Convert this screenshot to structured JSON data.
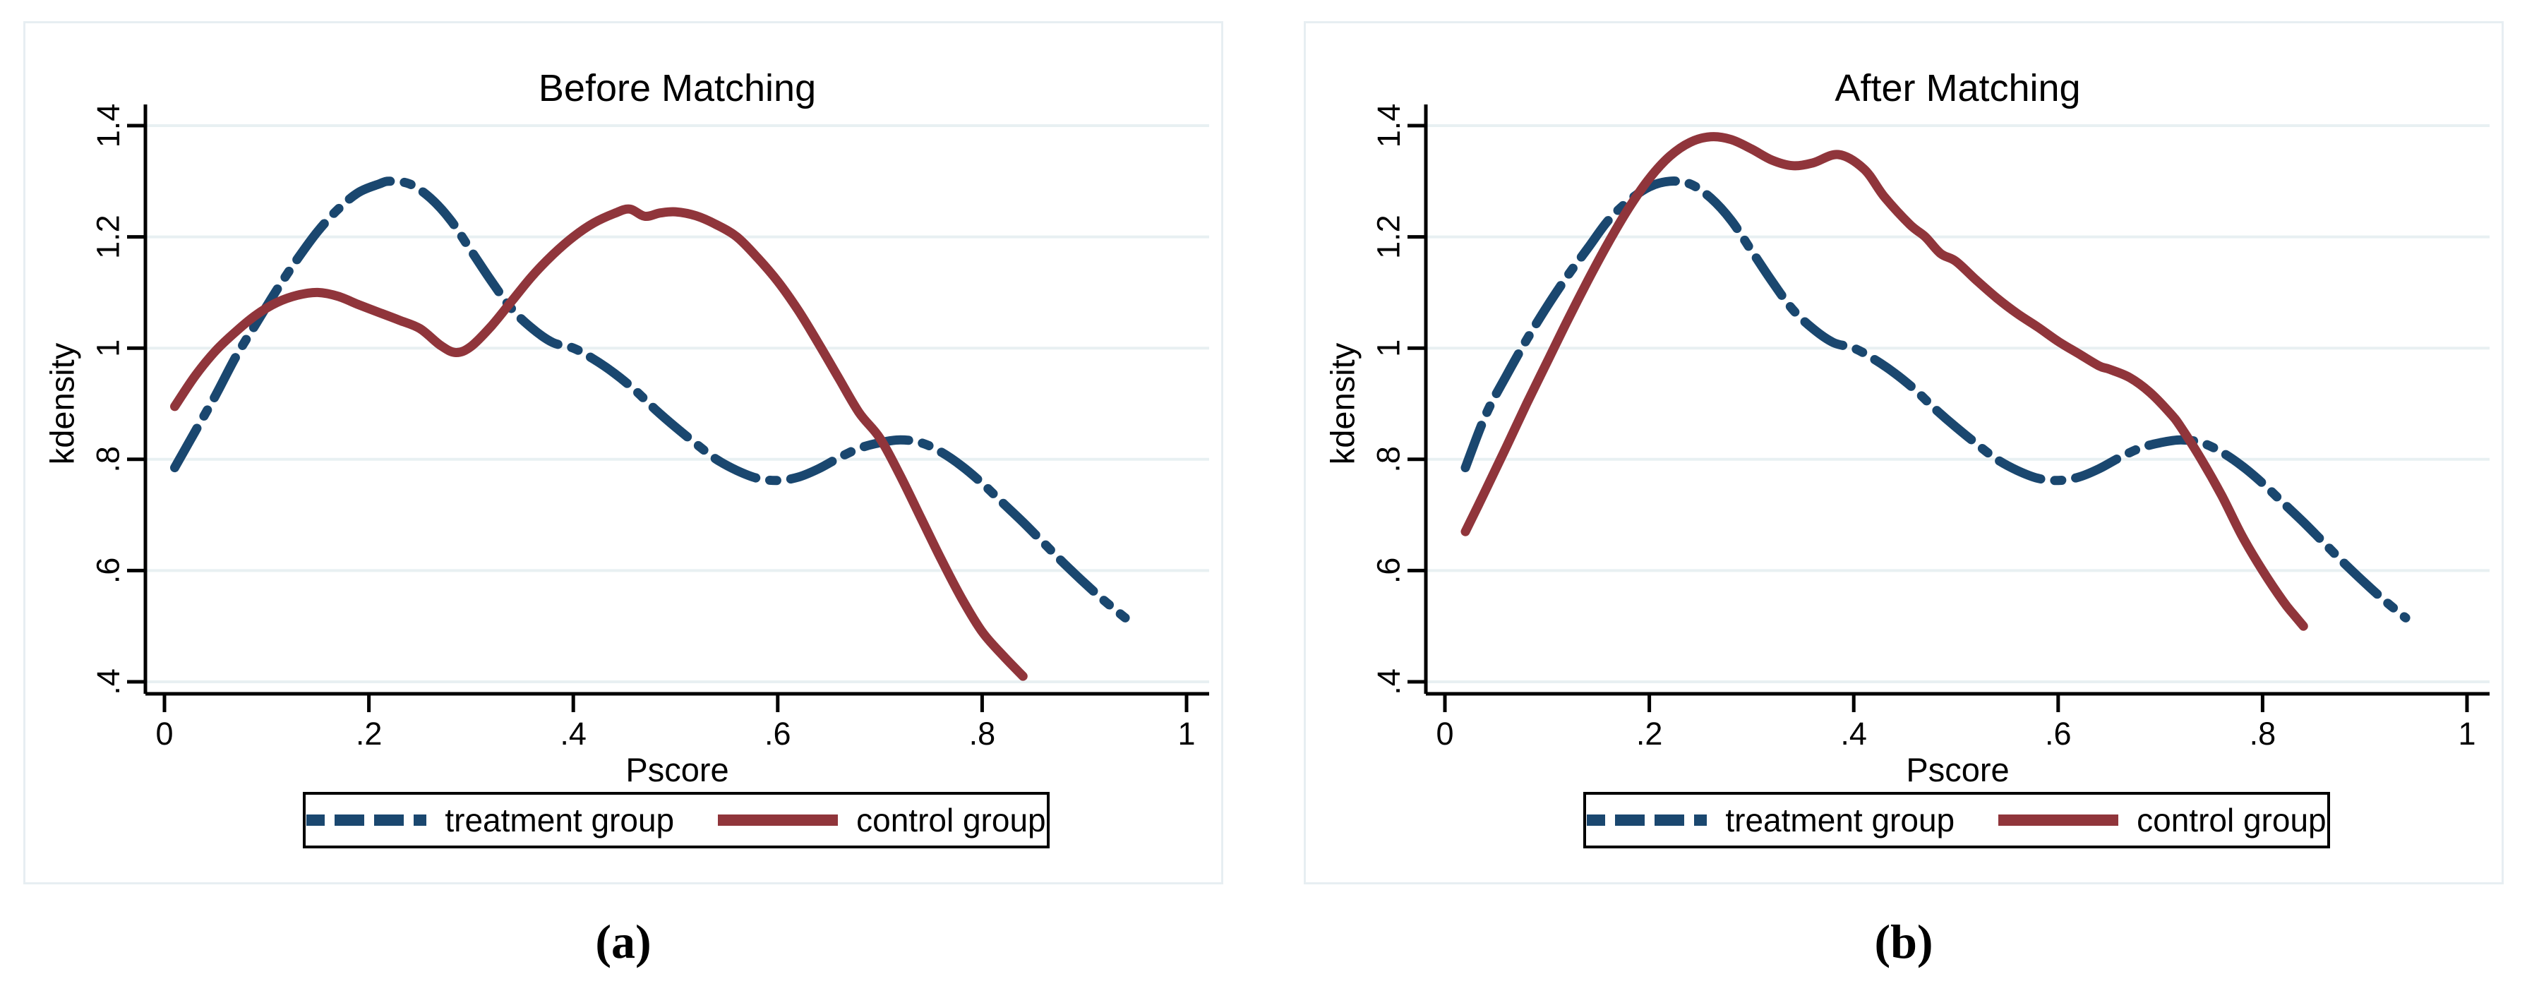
{
  "figure": {
    "caption_a": "(a)",
    "caption_b": "(b)"
  },
  "colors": {
    "treatment": "#1a476f",
    "control": "#90353b",
    "gridline": "#e8f0f2",
    "panel_frame": "#e7eef2",
    "axis": "#000000",
    "legend_border": "#000000",
    "background": "#ffffff"
  },
  "chart_data": [
    {
      "type": "line",
      "title": "Before Matching",
      "xlabel": "Pscore",
      "ylabel": "kdensity",
      "xlim": [
        0,
        1
      ],
      "ylim": [
        0.4,
        1.4
      ],
      "grid": "horizontal light gridlines at each y tick",
      "legend_position": "bottom outside, boxed, horizontal",
      "xticks": {
        "values": [
          0,
          0.2,
          0.4,
          0.6,
          0.8,
          1
        ],
        "labels": [
          "0",
          ".2",
          ".4",
          ".6",
          ".8",
          "1"
        ]
      },
      "yticks": {
        "values": [
          0.4,
          0.6,
          0.8,
          1,
          1.2,
          1.4
        ],
        "labels": [
          ".4",
          ".6",
          ".8",
          "1",
          "1.2",
          "1.4"
        ]
      },
      "series": [
        {
          "name": "treatment group",
          "color": "#1a476f",
          "line_style": "dash-dot",
          "points": [
            [
              0.01,
              0.785
            ],
            [
              0.03,
              0.85
            ],
            [
              0.05,
              0.915
            ],
            [
              0.07,
              0.985
            ],
            [
              0.09,
              1.045
            ],
            [
              0.11,
              1.105
            ],
            [
              0.13,
              1.16
            ],
            [
              0.15,
              1.21
            ],
            [
              0.17,
              1.25
            ],
            [
              0.19,
              1.28
            ],
            [
              0.21,
              1.295
            ],
            [
              0.22,
              1.3
            ],
            [
              0.24,
              1.295
            ],
            [
              0.26,
              1.27
            ],
            [
              0.28,
              1.23
            ],
            [
              0.3,
              1.175
            ],
            [
              0.32,
              1.12
            ],
            [
              0.34,
              1.07
            ],
            [
              0.36,
              1.035
            ],
            [
              0.38,
              1.01
            ],
            [
              0.4,
              1.0
            ],
            [
              0.42,
              0.98
            ],
            [
              0.44,
              0.955
            ],
            [
              0.46,
              0.925
            ],
            [
              0.48,
              0.89
            ],
            [
              0.5,
              0.858
            ],
            [
              0.52,
              0.828
            ],
            [
              0.54,
              0.8
            ],
            [
              0.56,
              0.78
            ],
            [
              0.58,
              0.766
            ],
            [
              0.6,
              0.762
            ],
            [
              0.62,
              0.768
            ],
            [
              0.64,
              0.783
            ],
            [
              0.66,
              0.803
            ],
            [
              0.68,
              0.82
            ],
            [
              0.7,
              0.83
            ],
            [
              0.72,
              0.835
            ],
            [
              0.74,
              0.83
            ],
            [
              0.76,
              0.813
            ],
            [
              0.78,
              0.788
            ],
            [
              0.8,
              0.757
            ],
            [
              0.82,
              0.722
            ],
            [
              0.84,
              0.687
            ],
            [
              0.86,
              0.65
            ],
            [
              0.88,
              0.613
            ],
            [
              0.9,
              0.578
            ],
            [
              0.92,
              0.545
            ],
            [
              0.94,
              0.515
            ]
          ]
        },
        {
          "name": "control group",
          "color": "#90353b",
          "line_style": "solid",
          "points": [
            [
              0.01,
              0.895
            ],
            [
              0.03,
              0.95
            ],
            [
              0.05,
              0.995
            ],
            [
              0.07,
              1.03
            ],
            [
              0.09,
              1.06
            ],
            [
              0.11,
              1.082
            ],
            [
              0.13,
              1.095
            ],
            [
              0.15,
              1.1
            ],
            [
              0.17,
              1.093
            ],
            [
              0.19,
              1.078
            ],
            [
              0.21,
              1.064
            ],
            [
              0.23,
              1.05
            ],
            [
              0.25,
              1.035
            ],
            [
              0.27,
              1.005
            ],
            [
              0.285,
              0.992
            ],
            [
              0.3,
              1.003
            ],
            [
              0.32,
              1.04
            ],
            [
              0.34,
              1.085
            ],
            [
              0.36,
              1.13
            ],
            [
              0.38,
              1.168
            ],
            [
              0.4,
              1.2
            ],
            [
              0.42,
              1.225
            ],
            [
              0.44,
              1.242
            ],
            [
              0.455,
              1.25
            ],
            [
              0.47,
              1.237
            ],
            [
              0.485,
              1.243
            ],
            [
              0.5,
              1.245
            ],
            [
              0.52,
              1.238
            ],
            [
              0.54,
              1.222
            ],
            [
              0.56,
              1.2
            ],
            [
              0.58,
              1.163
            ],
            [
              0.6,
              1.12
            ],
            [
              0.62,
              1.068
            ],
            [
              0.64,
              1.008
            ],
            [
              0.66,
              0.945
            ],
            [
              0.68,
              0.883
            ],
            [
              0.7,
              0.838
            ],
            [
              0.72,
              0.77
            ],
            [
              0.74,
              0.695
            ],
            [
              0.76,
              0.62
            ],
            [
              0.78,
              0.55
            ],
            [
              0.8,
              0.49
            ],
            [
              0.82,
              0.448
            ],
            [
              0.84,
              0.41
            ]
          ]
        }
      ],
      "legend": {
        "entries": [
          {
            "label": "treatment group"
          },
          {
            "label": "control group"
          }
        ]
      }
    },
    {
      "type": "line",
      "title": "After Matching",
      "xlabel": "Pscore",
      "ylabel": "kdensity",
      "xlim": [
        0,
        1
      ],
      "ylim": [
        0.4,
        1.4
      ],
      "grid": "horizontal light gridlines at each y tick",
      "legend_position": "bottom outside, boxed, horizontal",
      "xticks": {
        "values": [
          0,
          0.2,
          0.4,
          0.6,
          0.8,
          1
        ],
        "labels": [
          "0",
          ".2",
          ".4",
          ".6",
          ".8",
          "1"
        ]
      },
      "yticks": {
        "values": [
          0.4,
          0.6,
          0.8,
          1,
          1.2,
          1.4
        ],
        "labels": [
          ".4",
          ".6",
          ".8",
          "1",
          "1.2",
          "1.4"
        ]
      },
      "series": [
        {
          "name": "treatment group",
          "color": "#1a476f",
          "line_style": "dash-dot",
          "points": [
            [
              0.02,
              0.785
            ],
            [
              0.04,
              0.88
            ],
            [
              0.06,
              0.95
            ],
            [
              0.08,
              1.015
            ],
            [
              0.1,
              1.075
            ],
            [
              0.12,
              1.13
            ],
            [
              0.14,
              1.18
            ],
            [
              0.16,
              1.23
            ],
            [
              0.18,
              1.265
            ],
            [
              0.2,
              1.29
            ],
            [
              0.22,
              1.3
            ],
            [
              0.24,
              1.295
            ],
            [
              0.26,
              1.27
            ],
            [
              0.28,
              1.23
            ],
            [
              0.3,
              1.175
            ],
            [
              0.32,
              1.12
            ],
            [
              0.34,
              1.07
            ],
            [
              0.36,
              1.035
            ],
            [
              0.38,
              1.01
            ],
            [
              0.4,
              1.0
            ],
            [
              0.42,
              0.98
            ],
            [
              0.44,
              0.955
            ],
            [
              0.46,
              0.925
            ],
            [
              0.48,
              0.89
            ],
            [
              0.5,
              0.858
            ],
            [
              0.52,
              0.828
            ],
            [
              0.54,
              0.8
            ],
            [
              0.56,
              0.78
            ],
            [
              0.58,
              0.766
            ],
            [
              0.6,
              0.762
            ],
            [
              0.62,
              0.768
            ],
            [
              0.64,
              0.783
            ],
            [
              0.66,
              0.803
            ],
            [
              0.68,
              0.82
            ],
            [
              0.7,
              0.83
            ],
            [
              0.72,
              0.835
            ],
            [
              0.74,
              0.83
            ],
            [
              0.76,
              0.813
            ],
            [
              0.78,
              0.788
            ],
            [
              0.8,
              0.757
            ],
            [
              0.82,
              0.722
            ],
            [
              0.84,
              0.687
            ],
            [
              0.86,
              0.65
            ],
            [
              0.88,
              0.613
            ],
            [
              0.9,
              0.578
            ],
            [
              0.92,
              0.545
            ],
            [
              0.94,
              0.515
            ]
          ]
        },
        {
          "name": "control group",
          "color": "#90353b",
          "line_style": "solid",
          "points": [
            [
              0.02,
              0.67
            ],
            [
              0.04,
              0.745
            ],
            [
              0.06,
              0.822
            ],
            [
              0.08,
              0.9
            ],
            [
              0.1,
              0.975
            ],
            [
              0.12,
              1.05
            ],
            [
              0.14,
              1.122
            ],
            [
              0.16,
              1.19
            ],
            [
              0.18,
              1.252
            ],
            [
              0.2,
              1.305
            ],
            [
              0.22,
              1.345
            ],
            [
              0.24,
              1.37
            ],
            [
              0.26,
              1.38
            ],
            [
              0.28,
              1.375
            ],
            [
              0.3,
              1.358
            ],
            [
              0.32,
              1.338
            ],
            [
              0.34,
              1.328
            ],
            [
              0.36,
              1.333
            ],
            [
              0.385,
              1.348
            ],
            [
              0.41,
              1.322
            ],
            [
              0.43,
              1.272
            ],
            [
              0.455,
              1.222
            ],
            [
              0.47,
              1.2
            ],
            [
              0.485,
              1.17
            ],
            [
              0.5,
              1.156
            ],
            [
              0.52,
              1.122
            ],
            [
              0.54,
              1.09
            ],
            [
              0.56,
              1.062
            ],
            [
              0.58,
              1.038
            ],
            [
              0.6,
              1.012
            ],
            [
              0.62,
              0.99
            ],
            [
              0.64,
              0.968
            ],
            [
              0.65,
              0.962
            ],
            [
              0.67,
              0.947
            ],
            [
              0.69,
              0.92
            ],
            [
              0.71,
              0.882
            ],
            [
              0.72,
              0.858
            ],
            [
              0.74,
              0.8
            ],
            [
              0.76,
              0.735
            ],
            [
              0.78,
              0.662
            ],
            [
              0.8,
              0.6
            ],
            [
              0.82,
              0.545
            ],
            [
              0.83,
              0.522
            ],
            [
              0.84,
              0.5
            ]
          ]
        }
      ],
      "legend": {
        "entries": [
          {
            "label": "treatment group"
          },
          {
            "label": "control group"
          }
        ]
      }
    }
  ]
}
